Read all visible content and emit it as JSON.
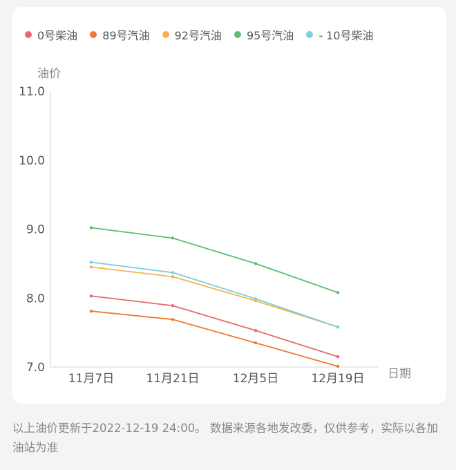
{
  "chart_data": {
    "type": "line",
    "categories": [
      "11月7日",
      "11月21日",
      "12月5日",
      "12月19日"
    ],
    "series": [
      {
        "name": "0号柴油",
        "color": "#e8696b",
        "values": [
          8.03,
          7.89,
          7.53,
          7.15
        ]
      },
      {
        "name": "89号汽油",
        "color": "#ee7a30",
        "values": [
          7.81,
          7.69,
          7.35,
          7.01
        ]
      },
      {
        "name": "92号汽油",
        "color": "#f4b44a",
        "values": [
          8.45,
          8.31,
          7.96,
          7.58
        ]
      },
      {
        "name": "95号汽油",
        "color": "#5bbf6f",
        "values": [
          9.02,
          8.87,
          8.5,
          8.08
        ]
      },
      {
        "name": "- 10号柴油",
        "color": "#78cfe0",
        "values": [
          8.52,
          8.37,
          7.99,
          7.58
        ]
      }
    ],
    "xlabel": "日期",
    "ylabel": "油价",
    "yticks": [
      "11.0",
      "10.0",
      "9.0",
      "8.0",
      "7.0"
    ],
    "ylim": [
      7,
      11
    ],
    "grid": false,
    "legend_position": "top"
  },
  "footer": {
    "note": "以上油价更新于2022-12-19 24:00。 数据来源各地发改委，仅供参考，实际以各加油站为准"
  }
}
